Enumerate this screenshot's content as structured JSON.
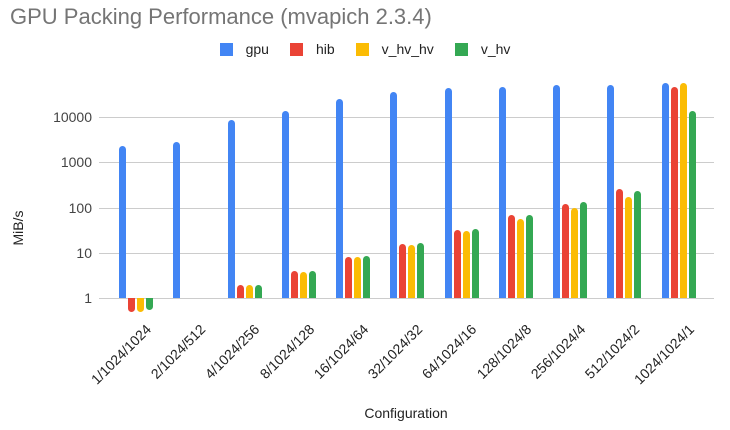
{
  "chart_data": {
    "type": "bar",
    "title": "GPU Packing Performance (mvapich 2.3.4)",
    "xlabel": "Configuration",
    "ylabel": "MiB/s",
    "y_scale": "log",
    "y_ticks": [
      1,
      10,
      100,
      1000,
      10000
    ],
    "ylim": [
      0.45,
      60000
    ],
    "grid": true,
    "legend_position": "top",
    "categories": [
      "1/1024/1024",
      "2/1024/512",
      "4/1024/256",
      "8/1024/128",
      "16/1024/64",
      "32/1024/32",
      "64/1024/16",
      "128/1024/8",
      "256/1024/4",
      "512/1024/2",
      "1024/1024/1"
    ],
    "series": [
      {
        "name": "gpu",
        "color": "#4285F4",
        "values": [
          2300,
          2800,
          8600,
          13800,
          25000,
          36000,
          44500,
          47000,
          52000,
          50000,
          57000
        ]
      },
      {
        "name": "hib",
        "color": "#EA4335",
        "values": [
          0.5,
          null,
          1.9,
          4,
          8.2,
          16,
          32,
          67,
          120,
          250,
          45000
        ]
      },
      {
        "name": "v_hv_hv",
        "color": "#FBBC04",
        "values": [
          0.5,
          null,
          1.9,
          3.8,
          8,
          14.5,
          30,
          56,
          100,
          170,
          57000
        ]
      },
      {
        "name": "v_hv",
        "color": "#34A853",
        "values": [
          0.55,
          null,
          1.9,
          4,
          8.4,
          16.5,
          33,
          67,
          130,
          230,
          13800
        ]
      }
    ]
  }
}
